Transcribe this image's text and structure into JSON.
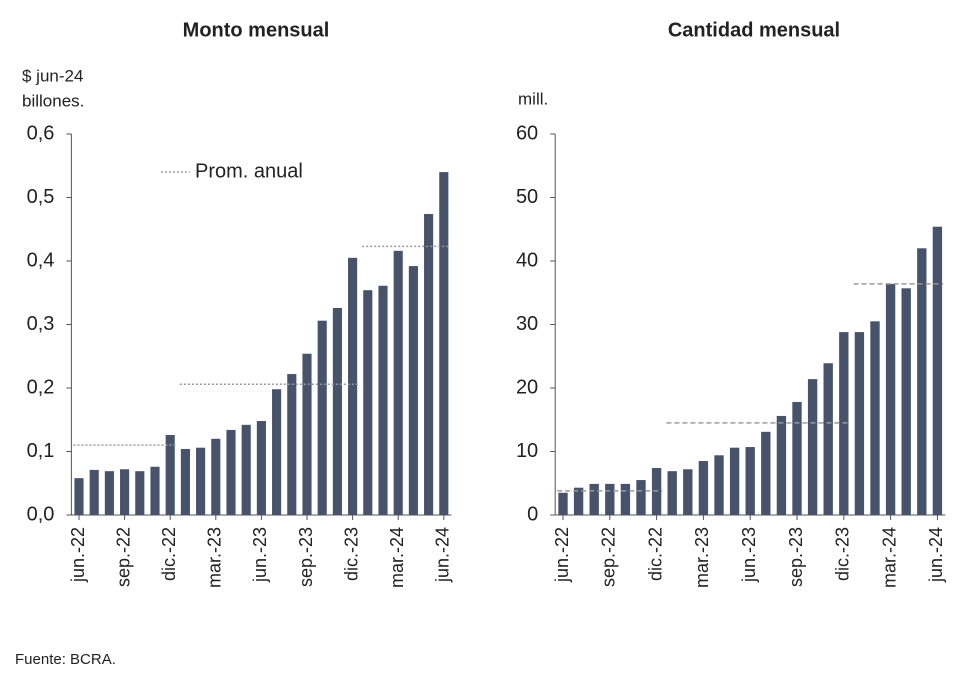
{
  "chart_data": [
    {
      "type": "bar",
      "title": "Monto mensual",
      "y_label": [
        "$ jun-24",
        "billones."
      ],
      "categories": [
        "jun.-22",
        null,
        null,
        "sep.-22",
        null,
        null,
        "dic.-22",
        null,
        null,
        "mar.-23",
        null,
        null,
        "jun.-23",
        null,
        null,
        "sep.-23",
        null,
        null,
        "dic.-23",
        null,
        null,
        "mar.-24",
        null,
        null,
        "jun.-24"
      ],
      "series": [
        {
          "name": "Monto",
          "color": "#46536a",
          "values": [
            0.058,
            0.071,
            0.069,
            0.072,
            0.069,
            0.076,
            0.126,
            0.104,
            0.106,
            0.12,
            0.134,
            0.142,
            0.148,
            0.198,
            0.222,
            0.254,
            0.306,
            0.326,
            0.405,
            0.354,
            0.361,
            0.416,
            0.392,
            0.474,
            0.54
          ]
        },
        {
          "name": "Prom. anual",
          "color": "#999999",
          "values": [
            0.11,
            0.11,
            0.11,
            0.11,
            0.11,
            0.11,
            0.11,
            0.206,
            0.206,
            0.206,
            0.206,
            0.206,
            0.206,
            0.206,
            0.206,
            0.206,
            0.206,
            0.206,
            0.206,
            0.423,
            0.423,
            0.423,
            0.423,
            0.423,
            0.423
          ]
        }
      ],
      "ylim": [
        0,
        0.6
      ],
      "yticks": [
        {
          "value": 0,
          "label": "0,0"
        },
        {
          "value": 0.1,
          "label": "0,1"
        },
        {
          "value": 0.2,
          "label": "0,2"
        },
        {
          "value": 0.3,
          "label": "0,3"
        },
        {
          "value": 0.4,
          "label": "0,4"
        },
        {
          "value": 0.5,
          "label": "0,5"
        },
        {
          "value": 0.6,
          "label": "0,6"
        }
      ],
      "legend": "top-left"
    },
    {
      "type": "bar",
      "title": "Cantidad mensual",
      "y_label": [
        "mill."
      ],
      "categories": [
        "jun.-22",
        null,
        null,
        "sep.-22",
        null,
        null,
        "dic.-22",
        null,
        null,
        "mar.-23",
        null,
        null,
        "jun.-23",
        null,
        null,
        "sep.-23",
        null,
        null,
        "dic.-23",
        null,
        null,
        "mar.-24",
        null,
        null,
        "jun.-24"
      ],
      "series": [
        {
          "color": "#46536a",
          "values": [
            3.5,
            4.3,
            4.9,
            4.9,
            4.9,
            5.5,
            7.4,
            6.9,
            7.2,
            8.5,
            9.4,
            10.6,
            10.7,
            13.1,
            15.6,
            17.8,
            21.4,
            23.9,
            28.8,
            28.8,
            30.5,
            36.4,
            35.7,
            42.0,
            45.4
          ]
        },
        {
          "color": "#999999",
          "values": [
            3.8,
            3.8,
            3.8,
            3.8,
            3.8,
            3.8,
            3.8,
            14.5,
            14.5,
            14.5,
            14.5,
            14.5,
            14.5,
            14.5,
            14.5,
            14.5,
            14.5,
            14.5,
            14.5,
            36.4,
            36.4,
            36.4,
            36.4,
            36.4,
            36.4
          ]
        }
      ],
      "ylim": [
        0,
        60
      ],
      "yticks": [
        0,
        10,
        20,
        30,
        40,
        50,
        60
      ]
    }
  ],
  "footer": "Fuente: BCRA."
}
